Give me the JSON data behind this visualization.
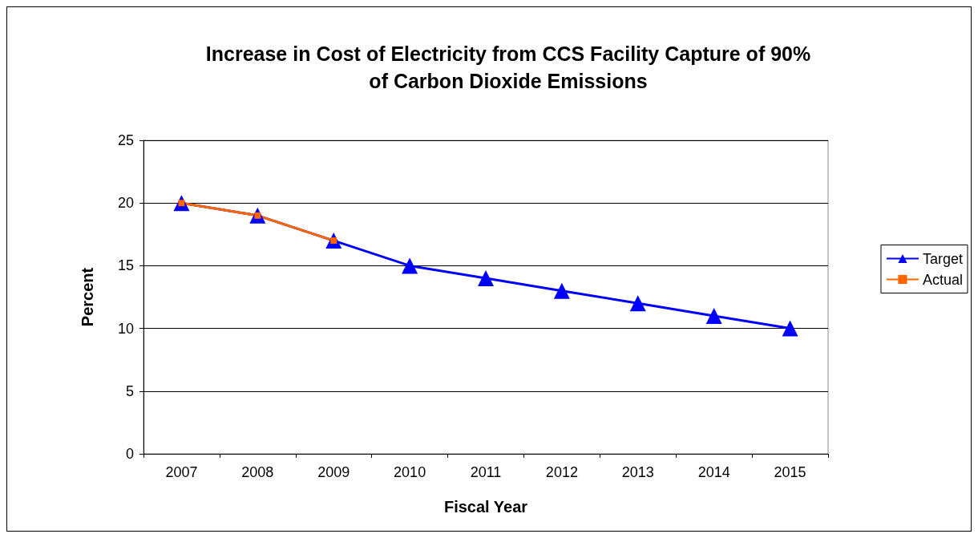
{
  "chart_data": {
    "type": "line",
    "title": "Increase in Cost of Electricity from CCS Facility Capture of 90%\nof Carbon Dioxide Emissions",
    "xlabel": "Fiscal Year",
    "ylabel": "Percent",
    "categories": [
      "2007",
      "2008",
      "2009",
      "2010",
      "2011",
      "2012",
      "2013",
      "2014",
      "2015"
    ],
    "series": [
      {
        "name": "Target",
        "color": "#0000ff",
        "marker": "triangle",
        "values": [
          20,
          19,
          17,
          15,
          14,
          13,
          12,
          11,
          10
        ]
      },
      {
        "name": "Actual",
        "color": "#ff6600",
        "marker": "square",
        "values": [
          20,
          19,
          17,
          null,
          null,
          null,
          null,
          null,
          null
        ]
      }
    ],
    "ylim": [
      0,
      25
    ],
    "yticks": [
      0,
      5,
      10,
      15,
      20,
      25
    ],
    "grid": "y",
    "legend": "right",
    "line_style": "solid"
  }
}
